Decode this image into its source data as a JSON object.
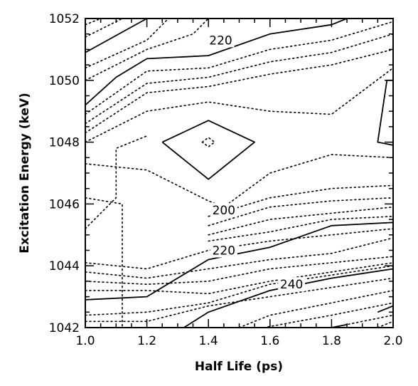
{
  "chart_data": {
    "type": "contour",
    "xlabel": "Half Life (ps)",
    "ylabel": "Excitation Energy (keV)",
    "xlim": [
      1.0,
      2.0
    ],
    "ylim": [
      1042,
      1052
    ],
    "xticks": [
      "1.0",
      "1.2",
      "1.4",
      "1.6",
      "1.8",
      "2.0"
    ],
    "yticks": [
      "1042",
      "1044",
      "1046",
      "1048",
      "1050",
      "1052"
    ],
    "contour_labels": [
      {
        "text": "220",
        "x": 1.44,
        "y": 1051.3
      },
      {
        "text": "200",
        "x": 1.45,
        "y": 1045.8
      },
      {
        "text": "220",
        "x": 1.45,
        "y": 1044.5
      },
      {
        "text": "240",
        "x": 1.67,
        "y": 1043.4
      }
    ],
    "series": [
      {
        "style": "solid",
        "points": [
          [
            1.0,
            1050.9
          ],
          [
            1.2,
            1052.0
          ]
        ]
      },
      {
        "style": "solid",
        "points": [
          [
            1.0,
            1049.2
          ],
          [
            1.1,
            1050.1
          ],
          [
            1.2,
            1050.7
          ],
          [
            1.4,
            1050.8
          ],
          [
            1.6,
            1051.5
          ],
          [
            1.8,
            1051.8
          ],
          [
            1.85,
            1052.0
          ]
        ]
      },
      {
        "style": "solid",
        "points": [
          [
            1.25,
            1048.0
          ],
          [
            1.4,
            1048.7
          ],
          [
            1.55,
            1048.0
          ],
          [
            1.4,
            1046.8
          ],
          [
            1.25,
            1048.0
          ]
        ]
      },
      {
        "style": "dotted",
        "points": [
          [
            1.38,
            1048.0
          ],
          [
            1.4,
            1048.15
          ],
          [
            1.42,
            1048.0
          ],
          [
            1.4,
            1047.85
          ],
          [
            1.38,
            1048.0
          ]
        ]
      },
      {
        "style": "solid",
        "points": [
          [
            2.0,
            1050.0
          ],
          [
            1.98,
            1050.0
          ],
          [
            1.95,
            1048.0
          ],
          [
            2.0,
            1047.9
          ]
        ]
      },
      {
        "style": "solid",
        "points": [
          [
            1.0,
            1042.9
          ],
          [
            1.2,
            1043.0
          ],
          [
            1.4,
            1044.2
          ],
          [
            1.6,
            1044.6
          ],
          [
            1.8,
            1045.3
          ],
          [
            2.0,
            1045.4
          ]
        ]
      },
      {
        "style": "solid",
        "points": [
          [
            1.32,
            1042.0
          ],
          [
            1.4,
            1042.5
          ],
          [
            1.6,
            1043.2
          ],
          [
            1.8,
            1043.6
          ],
          [
            2.0,
            1043.9
          ]
        ]
      },
      {
        "style": "solid",
        "points": [
          [
            1.6,
            1042.0
          ],
          [
            1.8,
            1042.0
          ],
          [
            1.85,
            1042.1
          ]
        ]
      },
      {
        "style": "solid",
        "points": [
          [
            1.95,
            1042.5
          ],
          [
            2.0,
            1042.7
          ]
        ]
      },
      {
        "style": "dotted",
        "points": [
          [
            1.0,
            1051.4
          ],
          [
            1.12,
            1052.0
          ]
        ]
      },
      {
        "style": "dotted",
        "points": [
          [
            1.0,
            1051.8
          ],
          [
            1.05,
            1052.0
          ]
        ]
      },
      {
        "style": "dotted",
        "points": [
          [
            1.0,
            1050.4
          ],
          [
            1.2,
            1051.3
          ],
          [
            1.27,
            1052.0
          ]
        ]
      },
      {
        "style": "dotted",
        "points": [
          [
            1.0,
            1050.0
          ],
          [
            1.2,
            1051.0
          ],
          [
            1.35,
            1051.5
          ],
          [
            1.4,
            1052.0
          ]
        ]
      },
      {
        "style": "dotted",
        "points": [
          [
            1.0,
            1048.9
          ],
          [
            1.1,
            1049.6
          ],
          [
            1.2,
            1050.3
          ],
          [
            1.4,
            1050.4
          ],
          [
            1.6,
            1051.0
          ],
          [
            1.8,
            1051.3
          ],
          [
            2.0,
            1051.9
          ]
        ]
      },
      {
        "style": "dotted",
        "points": [
          [
            1.0,
            1048.6
          ],
          [
            1.2,
            1049.9
          ],
          [
            1.4,
            1050.1
          ],
          [
            1.6,
            1050.6
          ],
          [
            1.8,
            1050.9
          ],
          [
            2.0,
            1051.5
          ]
        ]
      },
      {
        "style": "dotted",
        "points": [
          [
            1.0,
            1048.3
          ],
          [
            1.2,
            1049.6
          ],
          [
            1.4,
            1049.8
          ],
          [
            1.6,
            1050.2
          ],
          [
            1.8,
            1050.5
          ],
          [
            2.0,
            1051.0
          ]
        ]
      },
      {
        "style": "dotted",
        "points": [
          [
            1.0,
            1048.0
          ],
          [
            1.2,
            1049.0
          ],
          [
            1.4,
            1049.3
          ],
          [
            1.6,
            1049.0
          ],
          [
            1.8,
            1048.9
          ],
          [
            2.0,
            1050.4
          ]
        ]
      },
      {
        "style": "dotted",
        "points": [
          [
            1.0,
            1045.2
          ],
          [
            1.1,
            1046.2
          ],
          [
            1.1,
            1047.8
          ],
          [
            1.2,
            1048.2
          ]
        ]
      },
      {
        "style": "dotted",
        "points": [
          [
            1.0,
            1047.3
          ],
          [
            1.2,
            1047.1
          ],
          [
            1.4,
            1046.1
          ],
          [
            1.45,
            1045.9
          ],
          [
            1.6,
            1047.0
          ],
          [
            1.8,
            1047.6
          ],
          [
            2.0,
            1047.5
          ]
        ]
      },
      {
        "style": "dotted",
        "points": [
          [
            1.0,
            1046.2
          ],
          [
            1.12,
            1046.0
          ],
          [
            1.12,
            1042.0
          ]
        ]
      },
      {
        "style": "dotted",
        "points": [
          [
            1.4,
            1045.6
          ],
          [
            1.6,
            1046.2
          ],
          [
            1.8,
            1046.5
          ],
          [
            2.0,
            1046.6
          ]
        ]
      },
      {
        "style": "dotted",
        "points": [
          [
            1.4,
            1045.3
          ],
          [
            1.6,
            1045.9
          ],
          [
            1.8,
            1046.1
          ],
          [
            2.0,
            1046.2
          ]
        ]
      },
      {
        "style": "dotted",
        "points": [
          [
            1.4,
            1045.0
          ],
          [
            1.6,
            1045.5
          ],
          [
            1.8,
            1045.7
          ],
          [
            2.0,
            1045.9
          ]
        ]
      },
      {
        "style": "dotted",
        "points": [
          [
            1.4,
            1044.8
          ],
          [
            1.6,
            1045.1
          ],
          [
            1.8,
            1045.5
          ],
          [
            2.0,
            1045.6
          ]
        ]
      },
      {
        "style": "dotted",
        "points": [
          [
            1.0,
            1044.1
          ],
          [
            1.2,
            1043.9
          ],
          [
            1.4,
            1044.5
          ],
          [
            1.6,
            1044.8
          ],
          [
            1.8,
            1045.0
          ],
          [
            2.0,
            1045.2
          ]
        ]
      },
      {
        "style": "dotted",
        "points": [
          [
            1.0,
            1043.8
          ],
          [
            1.2,
            1043.6
          ],
          [
            1.4,
            1043.9
          ],
          [
            1.6,
            1044.2
          ],
          [
            1.8,
            1044.4
          ],
          [
            2.0,
            1044.9
          ]
        ]
      },
      {
        "style": "dotted",
        "points": [
          [
            1.0,
            1043.5
          ],
          [
            1.2,
            1043.4
          ],
          [
            1.4,
            1043.5
          ],
          [
            1.6,
            1043.9
          ],
          [
            1.8,
            1044.1
          ],
          [
            2.0,
            1044.3
          ]
        ]
      },
      {
        "style": "dotted",
        "points": [
          [
            1.0,
            1043.2
          ],
          [
            1.2,
            1043.2
          ],
          [
            1.4,
            1043.1
          ],
          [
            1.6,
            1043.5
          ],
          [
            1.8,
            1043.8
          ],
          [
            2.0,
            1044.1
          ]
        ]
      },
      {
        "style": "dotted",
        "points": [
          [
            1.0,
            1042.4
          ],
          [
            1.2,
            1042.5
          ],
          [
            1.4,
            1042.8
          ],
          [
            1.6,
            1043.4
          ],
          [
            1.8,
            1043.7
          ],
          [
            2.0,
            1044.0
          ]
        ]
      },
      {
        "style": "dotted",
        "points": [
          [
            1.0,
            1042.2
          ],
          [
            1.2,
            1042.2
          ],
          [
            1.4,
            1042.7
          ],
          [
            1.6,
            1043.0
          ],
          [
            1.8,
            1043.3
          ],
          [
            2.0,
            1043.6
          ]
        ]
      },
      {
        "style": "dotted",
        "points": [
          [
            1.5,
            1042.0
          ],
          [
            1.6,
            1042.4
          ],
          [
            1.8,
            1042.8
          ],
          [
            2.0,
            1043.2
          ]
        ]
      },
      {
        "style": "dotted",
        "points": [
          [
            1.58,
            1042.0
          ],
          [
            1.8,
            1042.4
          ],
          [
            2.0,
            1042.8
          ]
        ]
      },
      {
        "style": "dotted",
        "points": [
          [
            1.8,
            1042.0
          ],
          [
            2.0,
            1042.4
          ]
        ]
      },
      {
        "style": "dotted",
        "points": [
          [
            1.95,
            1042.0
          ],
          [
            2.0,
            1042.2
          ]
        ]
      }
    ]
  }
}
